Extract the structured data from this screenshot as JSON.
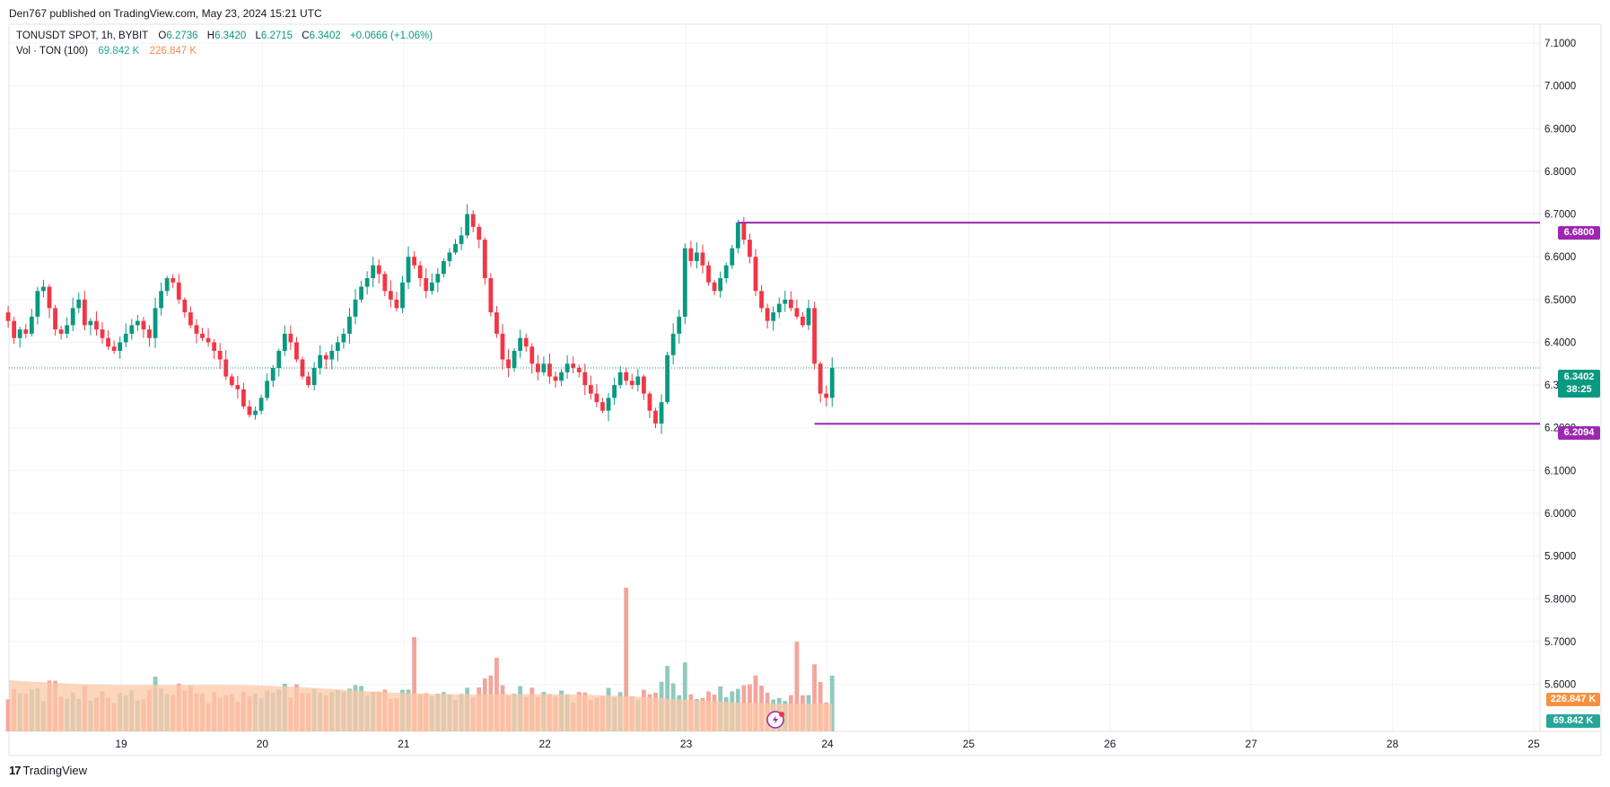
{
  "header": {
    "publisher": "Den767 published on TradingView.com, May 23, 2024 15:21 UTC"
  },
  "legend": {
    "symbol": "TONUSDT SPOT, 1h, BYBIT",
    "open_key": "O",
    "open": "6.2736",
    "high_key": "H",
    "high": "6.3420",
    "low_key": "L",
    "low": "6.2715",
    "close_key": "C",
    "close": "6.3402",
    "change": "+0.0666 (+1.06%)",
    "vol_label": "Vol · TON (100)",
    "vol_value": "69.842 K",
    "vol_ma": "226.847 K"
  },
  "price_tags": {
    "resistance": "6.6800",
    "support": "6.2094",
    "last_price": "6.3402",
    "countdown": "38:25",
    "vol_ma": "226.847 K",
    "vol_value": "69.842 K"
  },
  "footer": {
    "brand": "TradingView",
    "brand_mark": "17"
  },
  "colors": {
    "up": "#089981",
    "down": "#f23645",
    "level_line": "#9c27b0",
    "vol_up": "#8fc9bf",
    "vol_down": "#f3a59c",
    "vol_ma_fill": "#fcc8a8"
  },
  "chart_data": {
    "type": "candlestick",
    "symbol": "TONUSDT",
    "interval": "1h",
    "exchange": "BYBIT",
    "x_ticks": [
      "19",
      "20",
      "21",
      "22",
      "23",
      "24",
      "25",
      "26",
      "27",
      "28",
      "25"
    ],
    "y_ticks": [
      "7.1000",
      "7.0000",
      "6.9000",
      "6.8000",
      "6.7000",
      "6.6000",
      "6.5000",
      "6.4000",
      "6.3000",
      "6.2000",
      "6.1000",
      "6.0000",
      "5.9000",
      "5.8000",
      "5.7000",
      "5.6000"
    ],
    "ylim": [
      5.6,
      7.1
    ],
    "horizontal_levels": [
      6.68,
      6.2094
    ],
    "last_price": 6.3402,
    "candles_start_day": 18.2,
    "candles_per_day": 24,
    "closes": [
      6.45,
      6.41,
      6.43,
      6.42,
      6.46,
      6.52,
      6.53,
      6.48,
      6.43,
      6.42,
      6.44,
      6.48,
      6.5,
      6.44,
      6.45,
      6.43,
      6.41,
      6.39,
      6.38,
      6.4,
      6.42,
      6.44,
      6.45,
      6.43,
      6.41,
      6.48,
      6.52,
      6.55,
      6.54,
      6.5,
      6.47,
      6.44,
      6.42,
      6.41,
      6.4,
      6.38,
      6.36,
      6.32,
      6.3,
      6.29,
      6.25,
      6.23,
      6.24,
      6.27,
      6.31,
      6.34,
      6.38,
      6.42,
      6.4,
      6.36,
      6.32,
      6.3,
      6.34,
      6.37,
      6.36,
      6.38,
      6.4,
      6.42,
      6.46,
      6.5,
      6.53,
      6.55,
      6.58,
      6.56,
      6.52,
      6.5,
      6.48,
      6.54,
      6.6,
      6.58,
      6.55,
      6.52,
      6.54,
      6.56,
      6.59,
      6.61,
      6.63,
      6.65,
      6.7,
      6.67,
      6.64,
      6.55,
      6.47,
      6.42,
      6.36,
      6.34,
      6.38,
      6.41,
      6.39,
      6.35,
      6.33,
      6.35,
      6.32,
      6.31,
      6.33,
      6.35,
      6.34,
      6.33,
      6.3,
      6.28,
      6.26,
      6.24,
      6.27,
      6.3,
      6.33,
      6.31,
      6.3,
      6.32,
      6.28,
      6.24,
      6.21,
      6.26,
      6.37,
      6.42,
      6.46,
      6.62,
      6.59,
      6.61,
      6.58,
      6.54,
      6.52,
      6.55,
      6.58,
      6.62,
      6.68,
      6.64,
      6.6,
      6.52,
      6.48,
      6.45,
      6.47,
      6.49,
      6.5,
      6.48,
      6.46,
      6.44,
      6.48,
      6.35,
      6.28,
      6.27,
      6.3402
    ],
    "volume_ma": "226.847 K",
    "last_volume": "69.842 K"
  }
}
